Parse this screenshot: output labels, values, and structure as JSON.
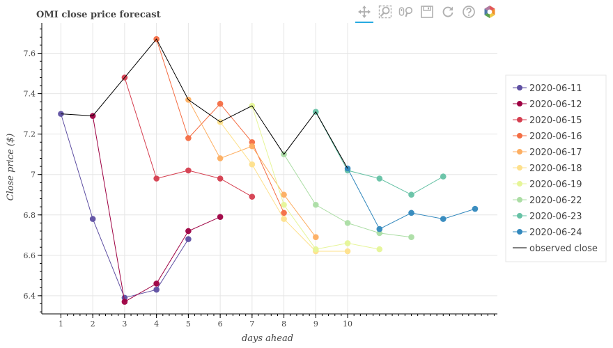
{
  "toolbar": {
    "tools": [
      {
        "name": "pan-tool",
        "icon": "pan-icon",
        "active": true
      },
      {
        "name": "box-zoom-tool",
        "icon": "box-zoom-icon",
        "active": false
      },
      {
        "name": "wheel-zoom-tool",
        "icon": "wheel-zoom-icon",
        "active": false
      },
      {
        "name": "save-tool",
        "icon": "save-icon",
        "active": false
      },
      {
        "name": "reset-tool",
        "icon": "reset-icon",
        "active": false
      },
      {
        "name": "help-tool",
        "icon": "help-icon",
        "active": false
      },
      {
        "name": "bokeh-logo",
        "icon": "bokeh-logo-icon",
        "active": false
      }
    ]
  },
  "chart_data": {
    "type": "line",
    "title": "OMI close price forecast",
    "xlabel": "days ahead",
    "ylabel": "Close price ($)",
    "xlim": [
      0.4,
      14.7
    ],
    "ylim": [
      6.31,
      7.75
    ],
    "x_ticks": [
      1,
      2,
      3,
      4,
      5,
      6,
      7,
      8,
      9,
      10
    ],
    "y_ticks": [
      {
        "value": 6.4,
        "label": "6.4"
      },
      {
        "value": 6.6,
        "label": "6.6"
      },
      {
        "value": 6.8,
        "label": "6.8"
      },
      {
        "value": 7.0,
        "label": "7"
      },
      {
        "value": 7.2,
        "label": "7.2"
      },
      {
        "value": 7.4,
        "label": "7.4"
      },
      {
        "value": 7.6,
        "label": "7.6"
      }
    ],
    "grid": true,
    "legend_position": "right",
    "series": [
      {
        "name": "2020-06-11",
        "color": "#5e4fa2",
        "points": [
          [
            1,
            7.3
          ],
          [
            2,
            6.78
          ],
          [
            3,
            6.39
          ],
          [
            4,
            6.43
          ],
          [
            5,
            6.68
          ]
        ]
      },
      {
        "name": "2020-06-12",
        "color": "#9e0142",
        "points": [
          [
            2,
            7.29
          ],
          [
            3,
            6.37
          ],
          [
            4,
            6.46
          ],
          [
            5,
            6.72
          ],
          [
            6,
            6.79
          ]
        ]
      },
      {
        "name": "2020-06-15",
        "color": "#d53e4f",
        "points": [
          [
            3,
            7.48
          ],
          [
            4,
            6.98
          ],
          [
            5,
            7.02
          ],
          [
            6,
            6.98
          ],
          [
            7,
            6.89
          ]
        ]
      },
      {
        "name": "2020-06-16",
        "color": "#f46d43",
        "points": [
          [
            4,
            7.67
          ],
          [
            5,
            7.18
          ],
          [
            6,
            7.35
          ],
          [
            7,
            7.16
          ],
          [
            8,
            6.81
          ]
        ]
      },
      {
        "name": "2020-06-17",
        "color": "#fdae61",
        "points": [
          [
            5,
            7.37
          ],
          [
            6,
            7.08
          ],
          [
            7,
            7.14
          ],
          [
            8,
            6.9
          ],
          [
            9,
            6.69
          ]
        ]
      },
      {
        "name": "2020-06-18",
        "color": "#fee08b",
        "points": [
          [
            6,
            7.26
          ],
          [
            7,
            7.05
          ],
          [
            8,
            6.78
          ],
          [
            9,
            6.62
          ],
          [
            10,
            6.62
          ]
        ]
      },
      {
        "name": "2020-06-19",
        "color": "#e6f598",
        "points": [
          [
            7,
            7.34
          ],
          [
            8,
            6.85
          ],
          [
            9,
            6.63
          ],
          [
            10,
            6.66
          ],
          [
            11,
            6.63
          ]
        ]
      },
      {
        "name": "2020-06-22",
        "color": "#abdda4",
        "points": [
          [
            8,
            7.1
          ],
          [
            9,
            6.85
          ],
          [
            10,
            6.76
          ],
          [
            11,
            6.71
          ],
          [
            12,
            6.69
          ]
        ]
      },
      {
        "name": "2020-06-23",
        "color": "#66c2a5",
        "points": [
          [
            9,
            7.31
          ],
          [
            10,
            7.02
          ],
          [
            11,
            6.98
          ],
          [
            12,
            6.9
          ],
          [
            13,
            6.99
          ]
        ]
      },
      {
        "name": "2020-06-24",
        "color": "#3288bd",
        "points": [
          [
            10,
            7.03
          ],
          [
            11,
            6.73
          ],
          [
            12,
            6.81
          ],
          [
            13,
            6.78
          ],
          [
            14,
            6.83
          ]
        ]
      }
    ],
    "observed": {
      "name": "observed close",
      "color": "#000000",
      "points": [
        [
          1,
          7.3
        ],
        [
          2,
          7.29
        ],
        [
          3,
          7.48
        ],
        [
          4,
          7.67
        ],
        [
          5,
          7.37
        ],
        [
          6,
          7.26
        ],
        [
          7,
          7.34
        ],
        [
          8,
          7.1
        ],
        [
          9,
          7.31
        ],
        [
          10,
          7.03
        ]
      ]
    }
  }
}
